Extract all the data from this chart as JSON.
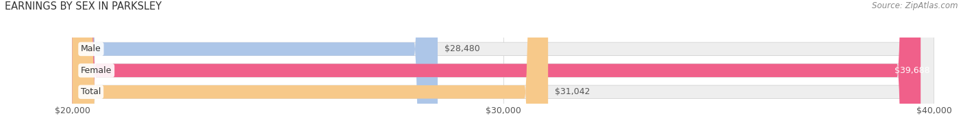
{
  "title": "EARNINGS BY SEX IN PARKSLEY",
  "source": "Source: ZipAtlas.com",
  "categories": [
    "Male",
    "Female",
    "Total"
  ],
  "values": [
    28480,
    39688,
    31042
  ],
  "bar_colors": [
    "#adc6e8",
    "#f0608a",
    "#f7c98a"
  ],
  "bar_bg_color": "#eeeeee",
  "label_colors": [
    "#444444",
    "#ffffff",
    "#444444"
  ],
  "xmin": 20000,
  "xmax": 40000,
  "xticks": [
    20000,
    30000,
    40000
  ],
  "xtick_labels": [
    "$20,000",
    "$30,000",
    "$40,000"
  ],
  "value_labels": [
    "$28,480",
    "$39,688",
    "$31,042"
  ],
  "title_fontsize": 10.5,
  "source_fontsize": 8.5,
  "label_fontsize": 9,
  "tick_fontsize": 9,
  "figsize": [
    14.06,
    1.95
  ],
  "dpi": 100
}
